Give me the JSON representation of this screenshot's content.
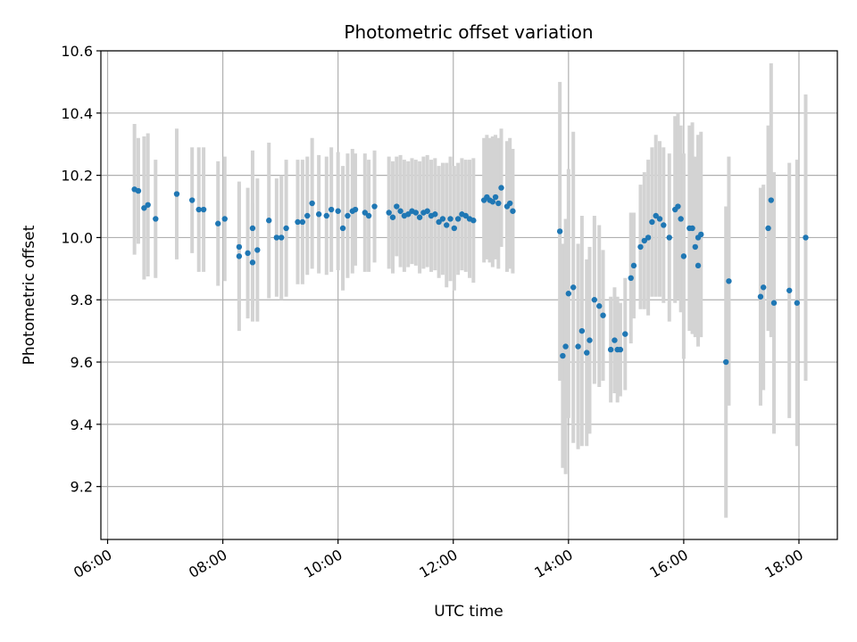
{
  "chart_data": {
    "type": "scatter",
    "title": "Photometric offset variation",
    "xlabel": "UTC time",
    "ylabel": "Photometric offset",
    "x_unit": "hours",
    "xlim": [
      "05:53",
      "18:40"
    ],
    "ylim": [
      9.03,
      10.6
    ],
    "x_ticks": [
      "06:00",
      "08:00",
      "10:00",
      "12:00",
      "14:00",
      "16:00",
      "18:00"
    ],
    "y_ticks": [
      9.2,
      9.4,
      9.6,
      9.8,
      10.0,
      10.2,
      10.4,
      10.6
    ],
    "grid": true,
    "series": [
      {
        "marker_color": "#1f77b4",
        "errorbar_color": "#d3d3d3",
        "points": [
          {
            "x": "06:28",
            "y": 10.155,
            "err": 0.21
          },
          {
            "x": "06:32",
            "y": 10.15,
            "err": 0.17
          },
          {
            "x": "06:38",
            "y": 10.095,
            "err": 0.23
          },
          {
            "x": "06:42",
            "y": 10.105,
            "err": 0.23
          },
          {
            "x": "06:50",
            "y": 10.06,
            "err": 0.19
          },
          {
            "x": "07:12",
            "y": 10.14,
            "err": 0.21
          },
          {
            "x": "07:28",
            "y": 10.12,
            "err": 0.17
          },
          {
            "x": "07:35",
            "y": 10.09,
            "err": 0.2
          },
          {
            "x": "07:40",
            "y": 10.09,
            "err": 0.2
          },
          {
            "x": "07:55",
            "y": 10.045,
            "err": 0.2
          },
          {
            "x": "08:02",
            "y": 10.06,
            "err": 0.2
          },
          {
            "x": "08:17",
            "y": 9.97,
            "err": 0.2
          },
          {
            "x": "08:17",
            "y": 9.94,
            "err": 0.24
          },
          {
            "x": "08:26",
            "y": 9.95,
            "err": 0.21
          },
          {
            "x": "08:31",
            "y": 10.03,
            "err": 0.25
          },
          {
            "x": "08:31",
            "y": 9.92,
            "err": 0.19
          },
          {
            "x": "08:36",
            "y": 9.96,
            "err": 0.23
          },
          {
            "x": "08:48",
            "y": 10.055,
            "err": 0.25
          },
          {
            "x": "08:56",
            "y": 10.0,
            "err": 0.19
          },
          {
            "x": "09:01",
            "y": 10.0,
            "err": 0.2
          },
          {
            "x": "09:06",
            "y": 10.03,
            "err": 0.22
          },
          {
            "x": "09:18",
            "y": 10.05,
            "err": 0.2
          },
          {
            "x": "09:23",
            "y": 10.05,
            "err": 0.2
          },
          {
            "x": "09:28",
            "y": 10.07,
            "err": 0.19
          },
          {
            "x": "09:33",
            "y": 10.11,
            "err": 0.21
          },
          {
            "x": "09:40",
            "y": 10.075,
            "err": 0.19
          },
          {
            "x": "09:48",
            "y": 10.07,
            "err": 0.19
          },
          {
            "x": "09:53",
            "y": 10.09,
            "err": 0.2
          },
          {
            "x": "10:00",
            "y": 10.085,
            "err": 0.19
          },
          {
            "x": "10:05",
            "y": 10.03,
            "err": 0.2
          },
          {
            "x": "10:10",
            "y": 10.07,
            "err": 0.2
          },
          {
            "x": "10:15",
            "y": 10.085,
            "err": 0.2
          },
          {
            "x": "10:18",
            "y": 10.09,
            "err": 0.18
          },
          {
            "x": "10:28",
            "y": 10.08,
            "err": 0.19
          },
          {
            "x": "10:32",
            "y": 10.07,
            "err": 0.18
          },
          {
            "x": "10:38",
            "y": 10.1,
            "err": 0.18
          },
          {
            "x": "10:53",
            "y": 10.08,
            "err": 0.18
          },
          {
            "x": "10:57",
            "y": 10.065,
            "err": 0.18
          },
          {
            "x": "11:01",
            "y": 10.1,
            "err": 0.16
          },
          {
            "x": "11:05",
            "y": 10.085,
            "err": 0.18
          },
          {
            "x": "11:09",
            "y": 10.07,
            "err": 0.18
          },
          {
            "x": "11:13",
            "y": 10.075,
            "err": 0.17
          },
          {
            "x": "11:17",
            "y": 10.085,
            "err": 0.17
          },
          {
            "x": "11:21",
            "y": 10.08,
            "err": 0.17
          },
          {
            "x": "11:25",
            "y": 10.065,
            "err": 0.18
          },
          {
            "x": "11:29",
            "y": 10.08,
            "err": 0.18
          },
          {
            "x": "11:33",
            "y": 10.085,
            "err": 0.18
          },
          {
            "x": "11:37",
            "y": 10.07,
            "err": 0.18
          },
          {
            "x": "11:41",
            "y": 10.075,
            "err": 0.18
          },
          {
            "x": "11:45",
            "y": 10.05,
            "err": 0.18
          },
          {
            "x": "11:49",
            "y": 10.06,
            "err": 0.18
          },
          {
            "x": "11:53",
            "y": 10.04,
            "err": 0.2
          },
          {
            "x": "11:57",
            "y": 10.06,
            "err": 0.2
          },
          {
            "x": "12:01",
            "y": 10.03,
            "err": 0.2
          },
          {
            "x": "12:05",
            "y": 10.06,
            "err": 0.18
          },
          {
            "x": "12:09",
            "y": 10.075,
            "err": 0.18
          },
          {
            "x": "12:13",
            "y": 10.07,
            "err": 0.18
          },
          {
            "x": "12:17",
            "y": 10.06,
            "err": 0.19
          },
          {
            "x": "12:21",
            "y": 10.055,
            "err": 0.2
          },
          {
            "x": "12:32",
            "y": 10.12,
            "err": 0.2
          },
          {
            "x": "12:35",
            "y": 10.13,
            "err": 0.2
          },
          {
            "x": "12:38",
            "y": 10.12,
            "err": 0.2
          },
          {
            "x": "12:41",
            "y": 10.115,
            "err": 0.21
          },
          {
            "x": "12:44",
            "y": 10.13,
            "err": 0.2
          },
          {
            "x": "12:47",
            "y": 10.11,
            "err": 0.21
          },
          {
            "x": "12:50",
            "y": 10.16,
            "err": 0.19
          },
          {
            "x": "12:56",
            "y": 10.1,
            "err": 0.21
          },
          {
            "x": "12:59",
            "y": 10.11,
            "err": 0.21
          },
          {
            "x": "13:02",
            "y": 10.085,
            "err": 0.2
          },
          {
            "x": "13:51",
            "y": 10.02,
            "err": 0.48
          },
          {
            "x": "13:54",
            "y": 9.62,
            "err": 0.36
          },
          {
            "x": "13:57",
            "y": 9.65,
            "err": 0.41
          },
          {
            "x": "14:00",
            "y": 9.82,
            "err": 0.4
          },
          {
            "x": "14:05",
            "y": 9.84,
            "err": 0.5
          },
          {
            "x": "14:10",
            "y": 9.65,
            "err": 0.33
          },
          {
            "x": "14:14",
            "y": 9.7,
            "err": 0.37
          },
          {
            "x": "14:19",
            "y": 9.63,
            "err": 0.3
          },
          {
            "x": "14:22",
            "y": 9.67,
            "err": 0.3
          },
          {
            "x": "14:27",
            "y": 9.8,
            "err": 0.27
          },
          {
            "x": "14:32",
            "y": 9.78,
            "err": 0.26
          },
          {
            "x": "14:36",
            "y": 9.75,
            "err": 0.21
          },
          {
            "x": "14:44",
            "y": 9.64,
            "err": 0.17
          },
          {
            "x": "14:48",
            "y": 9.67,
            "err": 0.17
          },
          {
            "x": "14:51",
            "y": 9.64,
            "err": 0.17
          },
          {
            "x": "14:54",
            "y": 9.64,
            "err": 0.15
          },
          {
            "x": "14:59",
            "y": 9.69,
            "err": 0.18
          },
          {
            "x": "15:05",
            "y": 9.87,
            "err": 0.21
          },
          {
            "x": "15:08",
            "y": 9.91,
            "err": 0.17
          },
          {
            "x": "15:15",
            "y": 9.97,
            "err": 0.2
          },
          {
            "x": "15:19",
            "y": 9.99,
            "err": 0.22
          },
          {
            "x": "15:23",
            "y": 10.0,
            "err": 0.25
          },
          {
            "x": "15:27",
            "y": 10.05,
            "err": 0.24
          },
          {
            "x": "15:31",
            "y": 10.07,
            "err": 0.26
          },
          {
            "x": "15:35",
            "y": 10.06,
            "err": 0.25
          },
          {
            "x": "15:39",
            "y": 10.04,
            "err": 0.25
          },
          {
            "x": "15:45",
            "y": 10.0,
            "err": 0.27
          },
          {
            "x": "15:51",
            "y": 10.09,
            "err": 0.3
          },
          {
            "x": "15:54",
            "y": 10.1,
            "err": 0.3
          },
          {
            "x": "15:57",
            "y": 10.06,
            "err": 0.3
          },
          {
            "x": "16:00",
            "y": 9.94,
            "err": 0.33
          },
          {
            "x": "16:06",
            "y": 10.03,
            "err": 0.33
          },
          {
            "x": "16:09",
            "y": 10.03,
            "err": 0.34
          },
          {
            "x": "16:12",
            "y": 9.97,
            "err": 0.29
          },
          {
            "x": "16:15",
            "y": 10.0,
            "err": 0.33
          },
          {
            "x": "16:18",
            "y": 10.01,
            "err": 0.33
          },
          {
            "x": "16:15",
            "y": 9.91,
            "err": 0.26
          },
          {
            "x": "16:44",
            "y": 9.6,
            "err": 0.5
          },
          {
            "x": "16:47",
            "y": 9.86,
            "err": 0.4
          },
          {
            "x": "17:20",
            "y": 9.81,
            "err": 0.35
          },
          {
            "x": "17:23",
            "y": 9.84,
            "err": 0.33
          },
          {
            "x": "17:28",
            "y": 10.03,
            "err": 0.33
          },
          {
            "x": "17:31",
            "y": 10.12,
            "err": 0.44
          },
          {
            "x": "17:34",
            "y": 9.79,
            "err": 0.42
          },
          {
            "x": "17:50",
            "y": 9.83,
            "err": 0.41
          },
          {
            "x": "17:58",
            "y": 9.79,
            "err": 0.46
          },
          {
            "x": "18:07",
            "y": 10.0,
            "err": 0.46
          }
        ]
      }
    ]
  }
}
